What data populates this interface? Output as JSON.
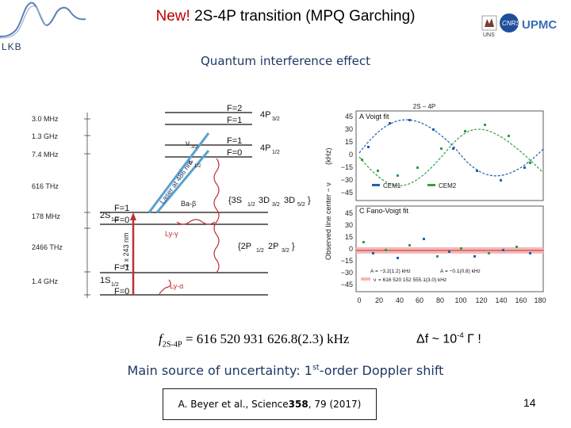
{
  "header": {
    "title_new": "New!",
    "title_rest": " 2S-4P transition (MPQ Garching)",
    "lab_logo": "LKB",
    "logos": {
      "left": "UNS",
      "right": "UPMC",
      "badge": "CNRS"
    }
  },
  "subtitle": "Quantum interference effect",
  "levels": {
    "freqs": [
      "3.0 MHz",
      "1.3 GHz",
      "7.4 MHz",
      "616 THz",
      "178 MHz",
      "2466 THz",
      "1.4 GHz"
    ],
    "top_labels": [
      "F=2",
      "F=1",
      "F=1",
      "F=0"
    ],
    "s2_label": "2S",
    "s2_sub": "1/2",
    "s2_f": [
      "F=1",
      "F=0"
    ],
    "s1_label": "1S",
    "s1_sub": "1/2",
    "s1_f": [
      "F=1",
      "F=0"
    ],
    "laser_486": "Laser at 486 nm",
    "laser_243": "2 x 243 nm",
    "ly_gamma": "Ly-γ",
    "ly_alpha": "Ly-α",
    "balmer": "Ba-β",
    "nu12": "ν",
    "nu_sub": "1/2",
    "nu32": "ν",
    "nu_sub32": "3/2"
  },
  "plots": {
    "panel_a": "A  Voigt fit",
    "panel_c": "C  Fano-Voigt fit",
    "ylabel": "Observed line center − ν",
    "ylabel_unit": "(kHz)",
    "yticks": [
      "45",
      "30",
      "15",
      "0",
      "−15",
      "−30",
      "−45"
    ],
    "xticks": [
      "0",
      "20",
      "40",
      "60",
      "80",
      "100",
      "120",
      "140",
      "160",
      "180"
    ],
    "legend_cem1": "CEM1",
    "legend_cem2": "CEM2",
    "fit_a1": "A",
    "fit_a1_val": "= −3.2(1.2) kHz",
    "fit_a2": "A",
    "fit_a2_val": "= −0.1(0.8) kHz",
    "fit_nu": "ν",
    "fit_nu_val": "= 616 520 152 555.1(3.0) kHz"
  },
  "formula": {
    "f": "f",
    "sub": "2S-4P",
    "value": " = 616 520 931 626.8(2.3) kHz"
  },
  "delta": {
    "text_a": "Δf ~ 10",
    "exp": "-4",
    "text_b": " Γ  !"
  },
  "uncertainty": {
    "before": "Main source of uncertainty: 1",
    "sup": "st",
    "after": "-order Doppler shift"
  },
  "reference": {
    "before": "A. Beyer et al., Science ",
    "vol": "358",
    "after": ", 79 (2017)"
  },
  "page_number": "14",
  "colors": {
    "title_red": "#c00000",
    "blue_text": "#1f3864",
    "cem1": "#2060b0",
    "cem2": "#30a040"
  }
}
